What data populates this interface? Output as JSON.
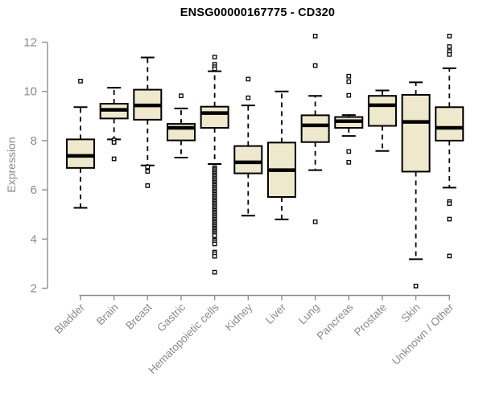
{
  "style": {
    "box_fill": "#EEE8CC",
    "box_stroke": "#000000",
    "axis_color": "#8f8f8f",
    "tick_label_color": "#8a8a8a",
    "title_color": "#000000",
    "outlier_fill": "#ffffff"
  },
  "chart_data": {
    "type": "boxplot",
    "title": "ENSG00000167775 - CD320",
    "ylabel": "Expression",
    "xlabel": "",
    "ylim": [
      2,
      12.4
    ],
    "yticks": [
      2,
      4,
      6,
      8,
      10,
      12
    ],
    "grid": false,
    "legend": "none",
    "categories": [
      "Bladder",
      "Brain",
      "Breast",
      "Gastric",
      "Hematopoietic cells",
      "Kidney",
      "Liver",
      "Lung",
      "Pancreas",
      "Prostate",
      "Skin",
      "Unknown / Other"
    ],
    "boxes": [
      {
        "category": "Bladder",
        "low": 5.27,
        "q1": 6.89,
        "median": 7.38,
        "q3": 8.05,
        "high": 9.36,
        "outliers": [
          10.42
        ]
      },
      {
        "category": "Brain",
        "low": 8.05,
        "q1": 8.9,
        "median": 9.25,
        "q3": 9.5,
        "high": 10.15,
        "outliers": [
          8.02,
          7.93,
          7.26
        ]
      },
      {
        "category": "Breast",
        "low": 6.99,
        "q1": 8.85,
        "median": 9.43,
        "q3": 10.07,
        "high": 11.38,
        "outliers": [
          6.93,
          6.75,
          6.17
        ]
      },
      {
        "category": "Gastric",
        "low": 7.31,
        "q1": 8.01,
        "median": 8.52,
        "q3": 8.68,
        "high": 9.31,
        "outliers": [
          9.82
        ]
      },
      {
        "category": "Hematopoietic cells",
        "low": 7.05,
        "q1": 8.52,
        "median": 9.12,
        "q3": 9.38,
        "high": 10.82,
        "outliers": [
          11.4,
          11.1,
          11.0,
          10.92,
          6.9,
          6.84,
          6.78,
          6.72,
          6.66,
          6.6,
          6.54,
          6.48,
          6.42,
          6.36,
          6.3,
          6.24,
          6.18,
          6.12,
          6.06,
          6.0,
          5.94,
          5.88,
          5.82,
          5.76,
          5.7,
          5.64,
          5.58,
          5.52,
          5.46,
          5.4,
          5.34,
          5.28,
          5.22,
          5.16,
          5.1,
          5.04,
          4.98,
          4.92,
          4.86,
          4.8,
          4.74,
          4.68,
          4.62,
          4.56,
          4.5,
          4.44,
          4.38,
          4.32,
          4.26,
          4.2,
          4.14,
          3.95,
          3.88,
          3.8,
          3.47,
          3.4,
          3.3,
          2.65
        ]
      },
      {
        "category": "Kidney",
        "low": 4.95,
        "q1": 6.67,
        "median": 7.12,
        "q3": 7.78,
        "high": 9.43,
        "outliers": [
          10.5,
          9.74
        ]
      },
      {
        "category": "Liver",
        "low": 4.8,
        "q1": 5.71,
        "median": 6.8,
        "q3": 7.92,
        "high": 10.0,
        "outliers": []
      },
      {
        "category": "Lung",
        "low": 6.8,
        "q1": 7.94,
        "median": 8.62,
        "q3": 9.03,
        "high": 9.82,
        "outliers": [
          12.25,
          11.05,
          4.7
        ]
      },
      {
        "category": "Pancreas",
        "low": 8.19,
        "q1": 8.52,
        "median": 8.79,
        "q3": 8.96,
        "high": 9.04,
        "outliers": [
          10.62,
          10.4,
          9.84,
          7.56,
          7.12
        ]
      },
      {
        "category": "Prostate",
        "low": 7.58,
        "q1": 8.6,
        "median": 9.44,
        "q3": 9.82,
        "high": 10.04,
        "outliers": []
      },
      {
        "category": "Skin",
        "low": 3.18,
        "q1": 6.74,
        "median": 8.76,
        "q3": 9.86,
        "high": 10.37,
        "outliers": [
          2.09
        ]
      },
      {
        "category": "Unknown / Other",
        "low": 6.09,
        "q1": 8.0,
        "median": 8.52,
        "q3": 9.36,
        "high": 10.94,
        "outliers": [
          12.25,
          11.82,
          11.62,
          11.5,
          5.52,
          5.44,
          4.81,
          3.31
        ]
      }
    ]
  }
}
